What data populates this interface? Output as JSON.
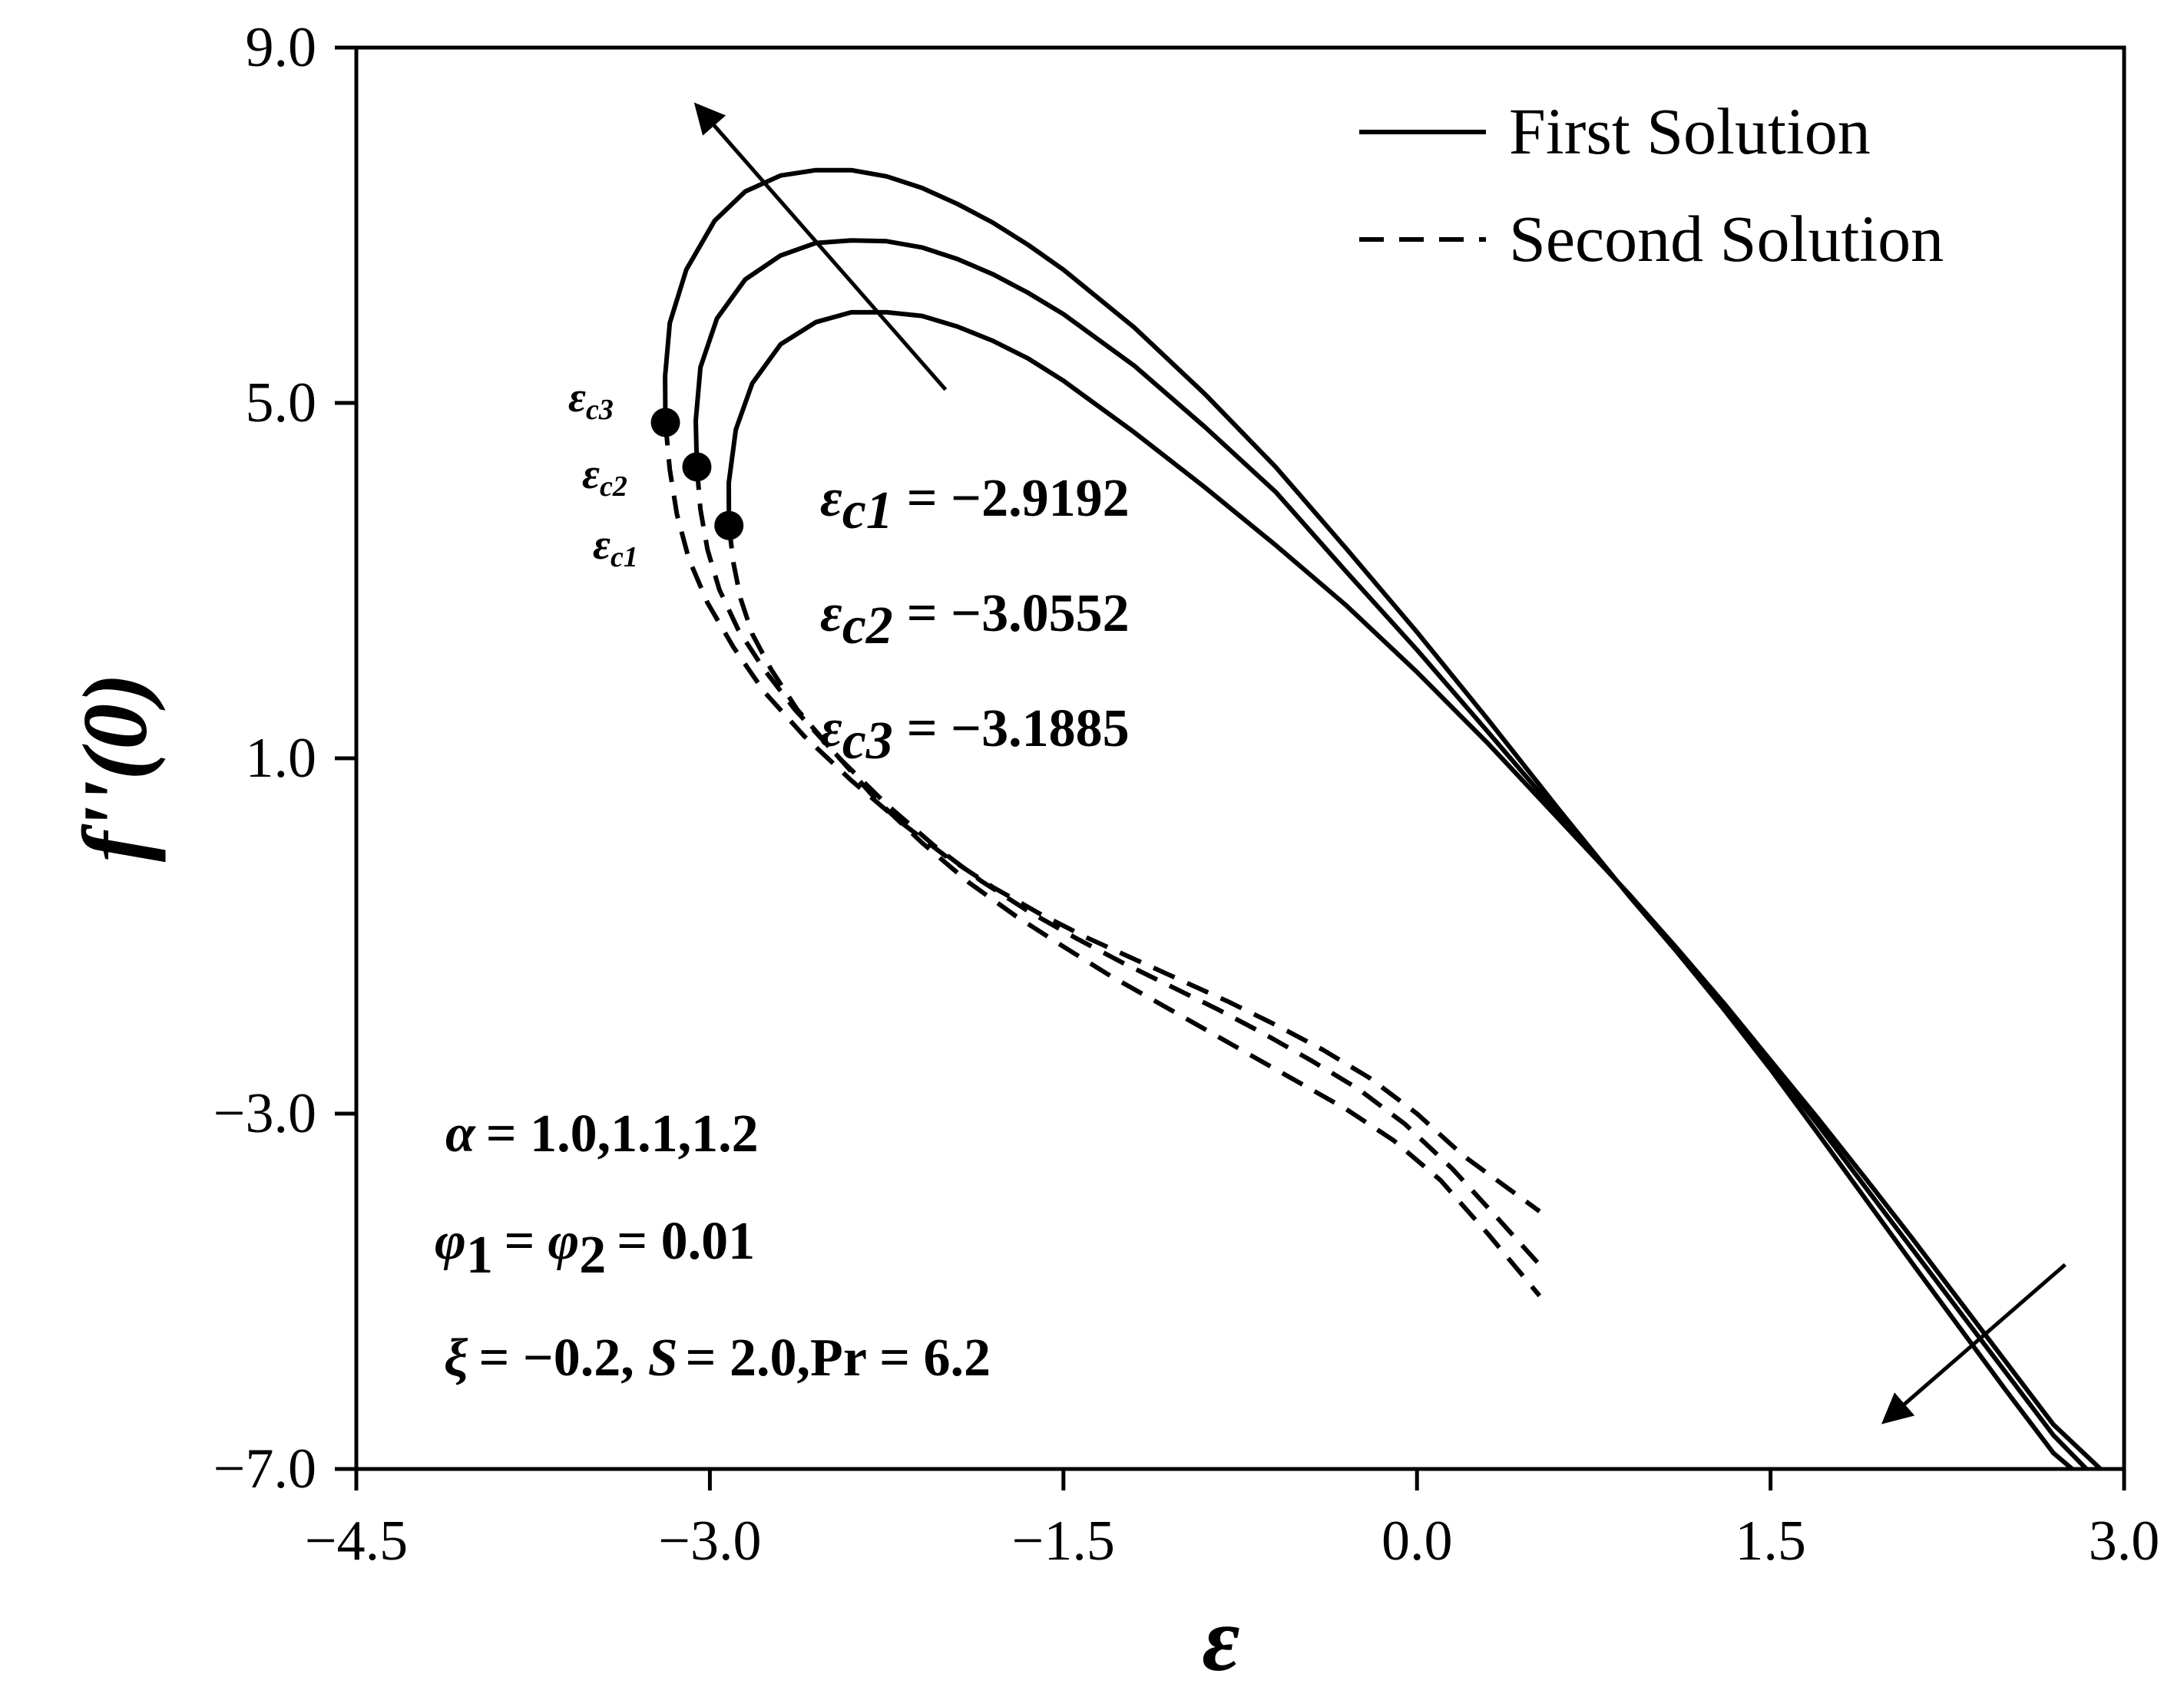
{
  "chart_data": {
    "type": "line",
    "title": "",
    "xlabel": "ε",
    "ylabel": "f''(0)",
    "xlim": [
      -4.5,
      3.0
    ],
    "ylim": [
      -7.0,
      9.0
    ],
    "xticks": [
      "−4.5",
      "−3.0",
      "−1.5",
      "0.0",
      "1.5",
      "3.0"
    ],
    "xtick_values": [
      -4.5,
      -3.0,
      -1.5,
      0.0,
      1.5,
      3.0
    ],
    "yticks": [
      "−7.0",
      "−3.0",
      "1.0",
      "5.0",
      "9.0"
    ],
    "ytick_values": [
      -7.0,
      -3.0,
      1.0,
      5.0,
      9.0
    ],
    "grid": false,
    "legend": {
      "position": "top-right",
      "entries": [
        {
          "label": "First Solution",
          "style": "solid"
        },
        {
          "label": "Second Solution",
          "style": "dashed"
        }
      ]
    },
    "series": [
      {
        "name": "α = 1.0 First Solution",
        "style": "solid",
        "x": [
          -2.9192,
          -2.92,
          -2.89,
          -2.82,
          -2.7,
          -2.55,
          -2.4,
          -2.25,
          -2.1,
          -1.95,
          -1.8,
          -1.65,
          -1.5,
          -1.2,
          -0.9,
          -0.6,
          -0.3,
          0.0,
          0.3,
          0.6,
          0.9,
          1.1,
          1.3,
          1.5,
          1.7,
          1.9,
          2.1,
          2.3,
          2.5,
          2.7,
          2.9
        ],
        "y": [
          3.62,
          4.1,
          4.7,
          5.22,
          5.66,
          5.91,
          6.02,
          6.02,
          5.98,
          5.86,
          5.7,
          5.5,
          5.25,
          4.67,
          4.05,
          3.4,
          2.72,
          1.97,
          1.17,
          0.32,
          -0.53,
          -1.13,
          -1.75,
          -2.4,
          -3.05,
          -3.72,
          -4.4,
          -5.1,
          -5.8,
          -6.5,
          -7.0
        ]
      },
      {
        "name": "α = 1.1 First Solution",
        "style": "solid",
        "x": [
          -3.0552,
          -3.06,
          -3.04,
          -2.97,
          -2.85,
          -2.7,
          -2.55,
          -2.4,
          -2.25,
          -2.1,
          -1.95,
          -1.8,
          -1.65,
          -1.5,
          -1.2,
          -0.9,
          -0.6,
          -0.3,
          0.0,
          0.3,
          0.6,
          0.9,
          1.1,
          1.3,
          1.5,
          1.7,
          1.9,
          2.1,
          2.3,
          2.5,
          2.7,
          2.84
        ],
        "y": [
          4.28,
          4.8,
          5.4,
          5.95,
          6.39,
          6.66,
          6.8,
          6.83,
          6.82,
          6.75,
          6.62,
          6.45,
          6.24,
          6.0,
          5.42,
          4.73,
          4.0,
          3.1,
          2.22,
          1.3,
          0.37,
          -0.54,
          -1.15,
          -1.78,
          -2.44,
          -3.12,
          -3.82,
          -4.52,
          -5.22,
          -5.92,
          -6.62,
          -7.0
        ]
      },
      {
        "name": "α = 1.2 First Solution",
        "style": "solid",
        "x": [
          -3.1885,
          -3.19,
          -3.17,
          -3.1,
          -2.98,
          -2.85,
          -2.7,
          -2.55,
          -2.4,
          -2.25,
          -2.1,
          -1.95,
          -1.8,
          -1.65,
          -1.5,
          -1.2,
          -0.9,
          -0.6,
          -0.3,
          0.0,
          0.3,
          0.6,
          0.9,
          1.1,
          1.3,
          1.5,
          1.7,
          1.9,
          2.1,
          2.3,
          2.5,
          2.7,
          2.78
        ],
        "y": [
          4.78,
          5.3,
          5.9,
          6.5,
          7.05,
          7.38,
          7.56,
          7.62,
          7.62,
          7.55,
          7.42,
          7.24,
          7.03,
          6.78,
          6.5,
          5.85,
          5.1,
          4.28,
          3.36,
          2.42,
          1.44,
          0.43,
          -0.55,
          -1.17,
          -1.82,
          -2.5,
          -3.22,
          -3.95,
          -4.68,
          -5.4,
          -6.12,
          -6.82,
          -7.0
        ]
      },
      {
        "name": "α = 1.0 Second Solution",
        "style": "dashed",
        "x": [
          -2.9192,
          -2.9,
          -2.87,
          -2.82,
          -2.74,
          -2.63,
          -2.5,
          -2.3,
          -2.1,
          -1.9,
          -1.7,
          -1.5,
          -1.3,
          -1.1,
          -0.9,
          -0.7,
          -0.5,
          -0.3,
          -0.1,
          0.1,
          0.3,
          0.52
        ],
        "y": [
          3.62,
          3.2,
          2.8,
          2.4,
          2.0,
          1.55,
          1.15,
          0.55,
          0.05,
          -0.4,
          -0.78,
          -1.12,
          -1.45,
          -1.75,
          -2.05,
          -2.35,
          -2.65,
          -2.95,
          -3.3,
          -3.75,
          -4.35,
          -5.05
        ]
      },
      {
        "name": "α = 1.1 Second Solution",
        "style": "dashed",
        "x": [
          -3.0552,
          -3.04,
          -3.01,
          -2.96,
          -2.88,
          -2.77,
          -2.64,
          -2.45,
          -2.25,
          -2.05,
          -1.85,
          -1.65,
          -1.45,
          -1.25,
          -1.05,
          -0.85,
          -0.65,
          -0.45,
          -0.25,
          -0.05,
          0.15,
          0.35,
          0.52
        ],
        "y": [
          4.28,
          3.8,
          3.35,
          2.9,
          2.45,
          2.0,
          1.55,
          1.0,
          0.48,
          0.02,
          -0.38,
          -0.72,
          -1.02,
          -1.3,
          -1.56,
          -1.82,
          -2.1,
          -2.4,
          -2.72,
          -3.12,
          -3.62,
          -4.2,
          -4.7
        ]
      },
      {
        "name": "α = 1.2 Second Solution",
        "style": "dashed",
        "x": [
          -3.1885,
          -3.17,
          -3.14,
          -3.09,
          -3.01,
          -2.9,
          -2.77,
          -2.6,
          -2.4,
          -2.2,
          -2.0,
          -1.8,
          -1.6,
          -1.4,
          -1.2,
          -1.0,
          -0.8,
          -0.6,
          -0.4,
          -0.2,
          0.0,
          0.2,
          0.52
        ],
        "y": [
          4.78,
          4.25,
          3.75,
          3.25,
          2.75,
          2.25,
          1.75,
          1.25,
          0.75,
          0.3,
          -0.1,
          -0.45,
          -0.75,
          -1.02,
          -1.26,
          -1.5,
          -1.74,
          -2.0,
          -2.28,
          -2.6,
          -3.0,
          -3.48,
          -4.1
        ]
      }
    ],
    "critical_points": [
      {
        "label_top": "ε",
        "label_sub": "c1",
        "x": -2.9192,
        "y": 3.62,
        "equation": "= −2.9192"
      },
      {
        "label_top": "ε",
        "label_sub": "c2",
        "x": -3.0552,
        "y": 4.28,
        "equation": "= −3.0552"
      },
      {
        "label_top": "ε",
        "label_sub": "c3",
        "x": -3.1885,
        "y": 4.78,
        "equation": "= −3.1885"
      }
    ],
    "arrows": [
      {
        "meaning": "increasing α (first solution maxima)",
        "from": [
          -2.0,
          5.15
        ],
        "to": [
          -3.05,
          8.33
        ]
      },
      {
        "meaning": "increasing α (lower-right region)",
        "from": [
          2.75,
          -4.7
        ],
        "to": [
          1.99,
          -6.45
        ]
      }
    ],
    "parameters": [
      {
        "symbol": "α",
        "text": "= 1.0,1.1,1.2"
      },
      {
        "symbol": "φ",
        "sub": "1",
        "mid": "= φ",
        "sub2": "2",
        "text": "= 0.01"
      },
      {
        "symbol": "ξ",
        "text": "= −0.2,",
        "sym2": "S",
        "text2": "= 2.0,Pr = 6.2"
      }
    ]
  }
}
